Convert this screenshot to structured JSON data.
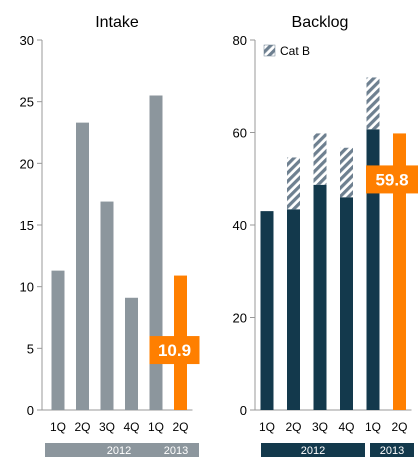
{
  "colors": {
    "gray": "#8c969d",
    "navy": "#13394c",
    "orange": "#ff7f00",
    "hatch": "#6e8090",
    "axis": "#999999"
  },
  "chart_data": [
    {
      "type": "bar",
      "title": "Intake",
      "categories": [
        "1Q",
        "2Q",
        "3Q",
        "4Q",
        "1Q",
        "2Q"
      ],
      "year_groups": [
        {
          "label": "2012",
          "span": 5
        },
        {
          "label": "2013",
          "span": 1
        }
      ],
      "values": [
        11.3,
        23.3,
        16.9,
        9.1,
        25.5,
        10.9
      ],
      "highlight_index": 5,
      "callout": "10.9",
      "ylim": [
        0,
        30
      ],
      "yticks": [
        0,
        5,
        10,
        15,
        20,
        25,
        30
      ],
      "grid": false
    },
    {
      "type": "bar",
      "stacked": true,
      "title": "Backlog",
      "categories": [
        "1Q",
        "2Q",
        "3Q",
        "4Q",
        "1Q",
        "2Q"
      ],
      "year_groups": [
        {
          "label": "2012",
          "span": 5
        },
        {
          "label": "2013",
          "span": 1
        }
      ],
      "series": [
        {
          "values": [
            43,
            43.4,
            48.7,
            46.0,
            60.7,
            59.8
          ]
        },
        {
          "name": "Cat B",
          "values": [
            0,
            11.2,
            11.1,
            10.7,
            11.2,
            0
          ]
        }
      ],
      "highlight_index": 5,
      "callout": "59.8",
      "legend_position": "top-left",
      "ylim": [
        0,
        80
      ],
      "yticks": [
        0,
        20,
        40,
        60,
        80
      ],
      "grid": false
    }
  ]
}
